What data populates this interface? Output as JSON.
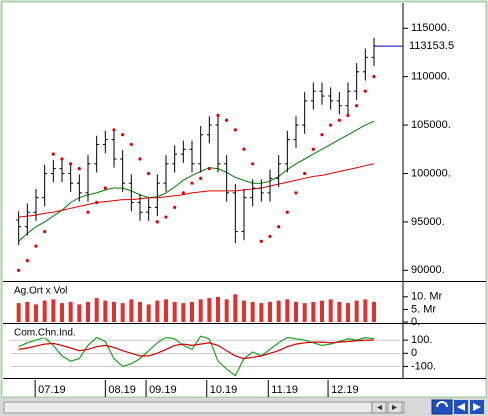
{
  "chart_data": [
    {
      "type": "ohlc",
      "x": [
        0,
        1,
        2,
        3,
        4,
        5,
        6,
        7,
        8,
        9,
        10,
        11,
        12,
        13,
        14,
        15,
        16,
        17,
        18,
        19,
        20,
        21,
        22,
        23,
        24,
        25,
        26,
        27,
        28,
        29,
        30,
        31,
        32,
        33,
        34,
        35,
        36,
        37,
        38,
        39,
        40,
        41
      ],
      "xlim": [
        -1,
        44
      ],
      "xticks": [
        {
          "value": 1.9,
          "label": "07.19"
        },
        {
          "value": 10,
          "label": "08.19"
        },
        {
          "value": 14.7,
          "label": "09.19"
        },
        {
          "value": 21.7,
          "label": "10.19"
        },
        {
          "value": 28.8,
          "label": "11.19"
        },
        {
          "value": 35.7,
          "label": "12.19"
        }
      ],
      "ylim": [
        89000,
        117400
      ],
      "yticks": [
        {
          "value": 115000,
          "label": "115000."
        },
        {
          "value": 110000,
          "label": "110000."
        },
        {
          "value": 105000,
          "label": "105000."
        },
        {
          "value": 100000,
          "label": "100000."
        },
        {
          "value": 95000,
          "label": "95000."
        },
        {
          "value": 90000,
          "label": "90000."
        }
      ],
      "ohlc": {
        "color": "#000000",
        "open": [
          95200,
          94500,
          96000,
          97500,
          100000,
          100500,
          100000,
          99000,
          98000,
          101000,
          103000,
          103500,
          101500,
          99000,
          97000,
          96000,
          96500,
          99000,
          101000,
          102000,
          102500,
          101000,
          104000,
          105000,
          101000,
          98000,
          94000,
          97500,
          98500,
          98000,
          99500,
          101000,
          103500,
          105000,
          107500,
          108500,
          108000,
          107500,
          107000,
          108500,
          110500,
          112000
        ],
        "high": [
          96100,
          96900,
          98400,
          100900,
          101400,
          101400,
          100900,
          99900,
          101900,
          103900,
          104400,
          104400,
          102400,
          99900,
          97900,
          97400,
          99900,
          101900,
          102900,
          103400,
          103400,
          104900,
          105900,
          105900,
          101900,
          98900,
          98400,
          99400,
          99400,
          100400,
          101900,
          104400,
          105900,
          108400,
          109400,
          109400,
          108900,
          108400,
          109400,
          111400,
          112900,
          114000
        ],
        "low": [
          92600,
          93600,
          95100,
          96600,
          99100,
          99100,
          98100,
          97100,
          97100,
          100100,
          102100,
          100600,
          98100,
          96100,
          95100,
          95100,
          95600,
          98100,
          100100,
          101100,
          100100,
          100100,
          103100,
          100100,
          97100,
          92800,
          93100,
          96600,
          97100,
          97100,
          98600,
          100100,
          102600,
          104100,
          106600,
          107100,
          106600,
          106100,
          106100,
          107600,
          109600,
          111100
        ],
        "close": [
          94500,
          96000,
          97500,
          100000,
          100500,
          100000,
          99000,
          98000,
          101000,
          103000,
          103500,
          101500,
          99000,
          97000,
          96000,
          96500,
          99000,
          101000,
          102000,
          102500,
          101000,
          104000,
          105000,
          101000,
          98000,
          94000,
          97500,
          98500,
          98000,
          99500,
          101000,
          103500,
          105000,
          107500,
          108500,
          108000,
          107500,
          107000,
          108500,
          110500,
          112000,
          113153.5
        ]
      },
      "sar": {
        "color": "#e00000",
        "values": [
          90000,
          91000,
          92500,
          94000,
          102000,
          101500,
          101000,
          100500,
          96000,
          97000,
          98500,
          104500,
          104000,
          103000,
          101500,
          100000,
          95000,
          95500,
          96500,
          98000,
          99000,
          99500,
          100500,
          106000,
          105500,
          104500,
          102500,
          101000,
          93000,
          93500,
          94500,
          96000,
          98000,
          100000,
          102500,
          104000,
          105000,
          105500,
          106000,
          107000,
          108500,
          110000
        ]
      },
      "ma": [
        {
          "color": "#008000",
          "values": [
            93000,
            93800,
            94500,
            95000,
            95600,
            96200,
            97000,
            97500,
            97800,
            98000,
            98300,
            98500,
            98500,
            98200,
            97800,
            97500,
            97600,
            98000,
            98600,
            99300,
            99800,
            100200,
            100600,
            100500,
            100100,
            99600,
            99300,
            99000,
            99000,
            99200,
            99700,
            100400,
            101000,
            101500,
            102000,
            102500,
            103000,
            103500,
            104000,
            104500,
            105000,
            105400
          ]
        },
        {
          "color": "#e00000",
          "values": [
            95500,
            95600,
            95700,
            95900,
            96000,
            96200,
            96400,
            96600,
            96800,
            97000,
            97100,
            97200,
            97300,
            97300,
            97400,
            97500,
            97500,
            97600,
            97700,
            97800,
            98000,
            98100,
            98200,
            98200,
            98200,
            98200,
            98300,
            98400,
            98500,
            98700,
            98900,
            99100,
            99300,
            99500,
            99700,
            99800,
            100000,
            100200,
            100400,
            100600,
            100800,
            101000
          ]
        }
      ],
      "last_line_color": "#0000c0"
    },
    {
      "type": "bar",
      "title": "Ag.Ort x Vol",
      "color": "#e03030",
      "ylim": [
        0,
        15500000
      ],
      "yticks": [
        {
          "value": 10000000,
          "label": "10. Mr"
        },
        {
          "value": 5000000,
          "label": "5. Mr"
        },
        {
          "value": 0,
          "label": "0."
        }
      ],
      "values": [
        7500000,
        8000000,
        7000000,
        8500000,
        9000000,
        7500000,
        8000000,
        7000000,
        8000000,
        9500000,
        8500000,
        8000000,
        7500000,
        9000000,
        8000000,
        7000000,
        8500000,
        9000000,
        8000000,
        7500000,
        8000000,
        9000000,
        9500000,
        10000000,
        9000000,
        11000000,
        8500000,
        8000000,
        7500000,
        8000000,
        8500000,
        9000000,
        8000000,
        7500000,
        8000000,
        8500000,
        9000000,
        8000000,
        7500000,
        8500000,
        9000000,
        8000000
      ]
    },
    {
      "type": "line",
      "title": "Com.Chn.Ind.",
      "ylim": [
        -180,
        215
      ],
      "yticks": [
        {
          "value": 100,
          "label": "100."
        },
        0,
        {
          "value": -100,
          "label": "-100."
        }
      ],
      "series": [
        {
          "color": "#20a020",
          "values": [
            50,
            80,
            100,
            120,
            60,
            -20,
            -60,
            -40,
            60,
            120,
            90,
            -40,
            -100,
            -80,
            -40,
            20,
            80,
            120,
            110,
            60,
            30,
            130,
            110,
            -60,
            -120,
            -170,
            -40,
            10,
            -20,
            30,
            80,
            120,
            110,
            100,
            80,
            60,
            70,
            90,
            110,
            100,
            120,
            110
          ]
        },
        {
          "color": "#d00000",
          "values": [
            30,
            40,
            55,
            70,
            75,
            60,
            40,
            20,
            30,
            50,
            60,
            45,
            20,
            0,
            -20,
            -20,
            0,
            30,
            60,
            70,
            60,
            70,
            80,
            60,
            20,
            -20,
            -40,
            -30,
            -20,
            0,
            20,
            50,
            70,
            80,
            85,
            85,
            80,
            85,
            90,
            95,
            100,
            100
          ]
        }
      ]
    }
  ]
}
